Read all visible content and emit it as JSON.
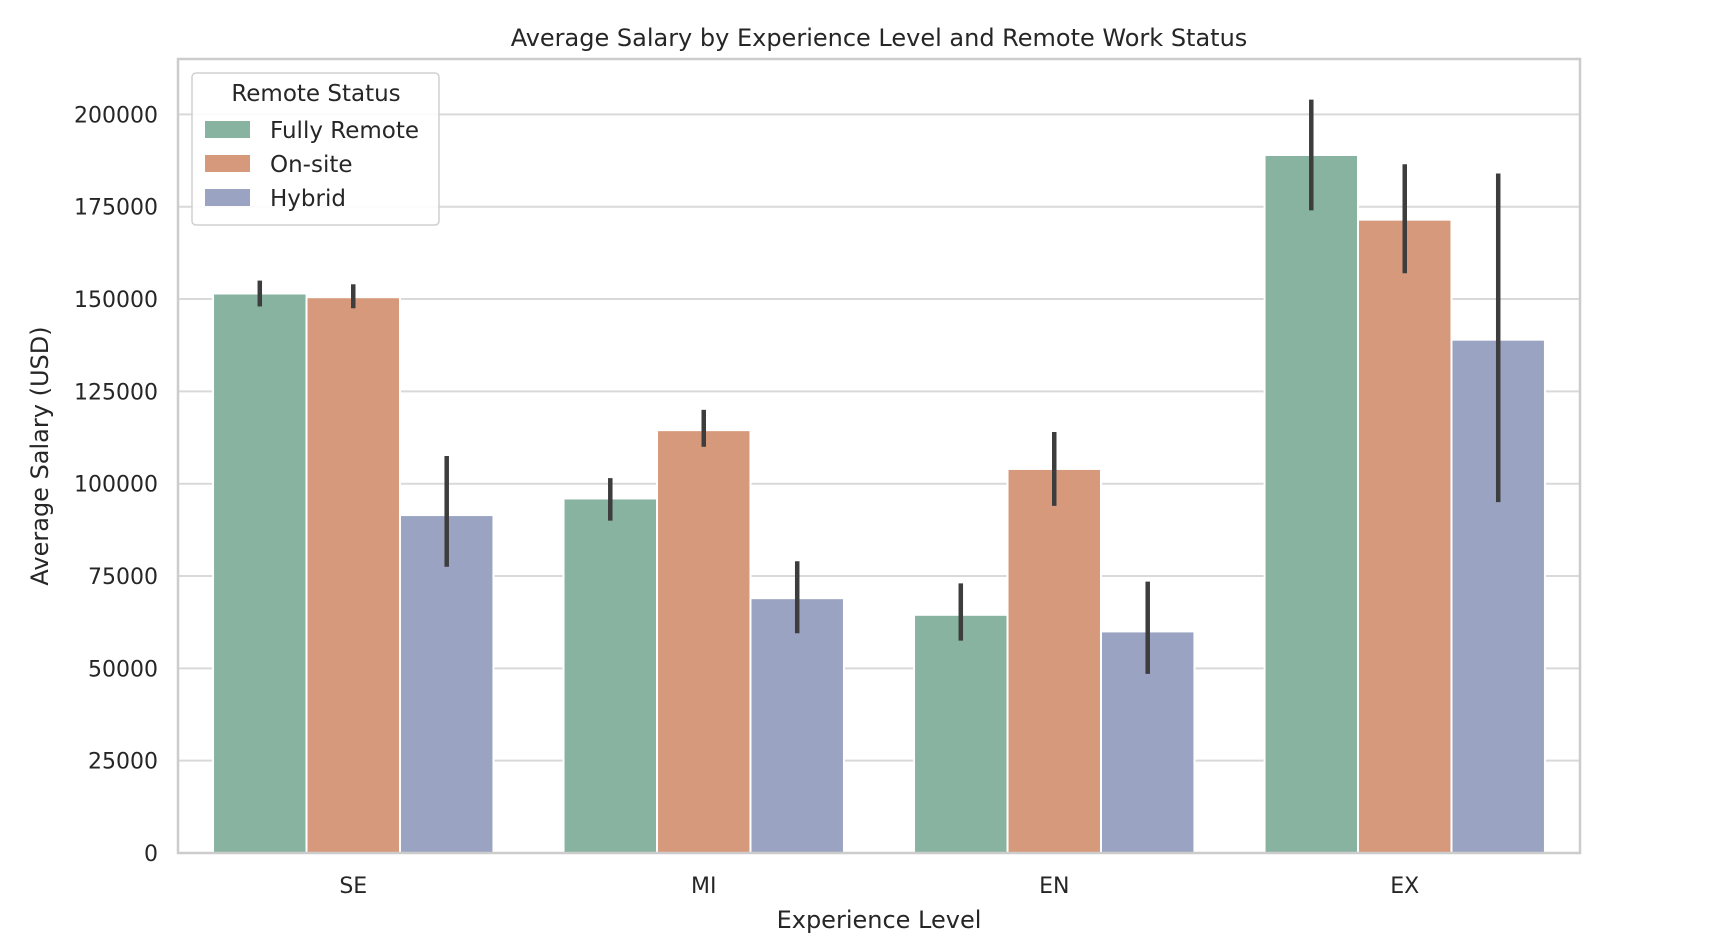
{
  "chart_data": {
    "type": "bar",
    "title": "Average Salary by Experience Level and Remote Work Status",
    "xlabel": "Experience Level",
    "ylabel": "Average Salary (USD)",
    "categories": [
      "SE",
      "MI",
      "EN",
      "EX"
    ],
    "ylim": [
      0,
      215000
    ],
    "yticks": [
      0,
      25000,
      50000,
      75000,
      100000,
      125000,
      150000,
      175000,
      200000
    ],
    "grid": true,
    "legend": {
      "title": "Remote Status",
      "placement": "top-left"
    },
    "series": [
      {
        "name": "Fully Remote",
        "color": "#87b3a0",
        "values": [
          151500,
          96000,
          64500,
          189000
        ],
        "error_low": [
          148000,
          90000,
          57500,
          174000
        ],
        "error_high": [
          155000,
          101500,
          73000,
          204000
        ]
      },
      {
        "name": "On-site",
        "color": "#d6997b",
        "values": [
          150500,
          114500,
          104000,
          171500
        ],
        "error_low": [
          147500,
          110000,
          94000,
          157000
        ],
        "error_high": [
          154000,
          120000,
          114000,
          186500
        ]
      },
      {
        "name": "Hybrid",
        "color": "#9aa3c1",
        "values": [
          91500,
          69000,
          60000,
          139000
        ],
        "error_low": [
          77500,
          59500,
          48500,
          95000
        ],
        "error_high": [
          107500,
          79000,
          73500,
          184000
        ]
      }
    ]
  }
}
